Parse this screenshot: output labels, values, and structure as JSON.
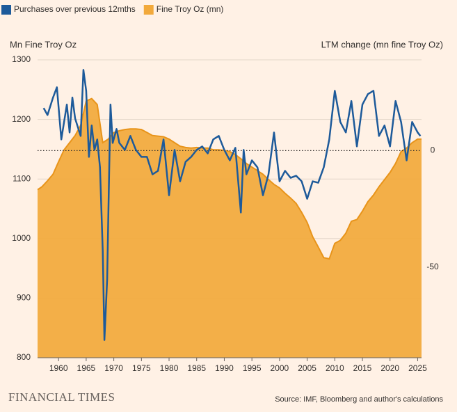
{
  "chart_data": {
    "type": "area",
    "y_label": "Mn Fine Troy Oz",
    "y2_label": "LTM change (mn fine Troy Oz)",
    "source": "Source: IMF, Bloomberg and author's calculations",
    "logo": "FINANCIAL TIMES",
    "xlim": [
      1956.2,
      2025.7
    ],
    "xticks": [
      1960,
      1965,
      1970,
      1975,
      1980,
      1985,
      1990,
      1995,
      2000,
      2005,
      2010,
      2015,
      2020,
      2025
    ],
    "ylim": [
      800,
      1300
    ],
    "yticks": [
      800,
      900,
      1000,
      1100,
      1200,
      1300
    ],
    "y2lim": [
      -89,
      39
    ],
    "y2ticks": [
      0,
      -50
    ],
    "hline": {
      "axis": "y2",
      "value": 0
    },
    "grid": true,
    "legend": "top-left",
    "series": [
      {
        "name": "Purchases over previous 12mths",
        "type": "line",
        "axis": "y2",
        "color": "#1d5a9a",
        "x": [
          1957.3,
          1958,
          1959,
          1959.7,
          1960.5,
          1961.5,
          1962,
          1962.5,
          1963,
          1964,
          1964.5,
          1965,
          1965.5,
          1966,
          1966.5,
          1967,
          1967.5,
          1968,
          1968.3,
          1968.8,
          1969.1,
          1969.4,
          1969.8,
          1970.5,
          1971,
          1972,
          1973,
          1974,
          1975,
          1976,
          1977,
          1978,
          1979,
          1980,
          1981,
          1982,
          1983,
          1984,
          1985,
          1986,
          1987,
          1988,
          1989,
          1990,
          1991,
          1992,
          1993,
          1993.5,
          1994,
          1995,
          1996,
          1997,
          1998,
          1999,
          2000,
          2001,
          2002,
          2003,
          2004,
          2005,
          2006,
          2007,
          2008,
          2009,
          2010,
          2011,
          2012,
          2013,
          2014,
          2015,
          2016,
          2017,
          2018,
          2019,
          2020,
          2021,
          2022,
          2023,
          2024,
          2025,
          2025.5
        ],
        "values": [
          18.3,
          15.3,
          22.8,
          27.2,
          4.8,
          19.8,
          7.8,
          22.8,
          13.8,
          6.3,
          34.7,
          25.7,
          -2.7,
          10.8,
          0.3,
          4.8,
          -7.2,
          -43.1,
          -81.4,
          -55.1,
          -16.2,
          19.8,
          3.3,
          9.3,
          3.3,
          0.3,
          6.3,
          0.3,
          -2.7,
          -2.7,
          -10.2,
          -8.7,
          4.8,
          -19.2,
          0.3,
          -13.2,
          -4.8,
          -2.7,
          0.3,
          1.8,
          -1.2,
          4.8,
          6.3,
          0.3,
          -4.2,
          1.2,
          -26.6,
          0.3,
          -10.2,
          -4.2,
          -7.2,
          -19.2,
          -10.2,
          7.8,
          -13.2,
          -8.7,
          -11.7,
          -10.8,
          -13.2,
          -20.7,
          -13.2,
          -13.8,
          -7.2,
          4.8,
          25.7,
          12.3,
          7.8,
          21.3,
          1.8,
          19.8,
          24.3,
          25.7,
          6.3,
          10.8,
          1.8,
          21.3,
          12.3,
          -4.2,
          12.3,
          7.8,
          6.3
        ]
      },
      {
        "name": "Fine Troy Oz (mn)",
        "type": "area",
        "color": "#f2a93b",
        "x": [
          1956.2,
          1957,
          1958,
          1959,
          1960,
          1961,
          1962,
          1963,
          1964,
          1965,
          1966,
          1967,
          1968,
          1969,
          1970,
          1971,
          1972,
          1973,
          1974,
          1975,
          1976,
          1977,
          1978,
          1979,
          1980,
          1981,
          1982,
          1983,
          1984,
          1985,
          1986,
          1987,
          1988,
          1989,
          1990,
          1991,
          1992,
          1993,
          1994,
          1995,
          1996,
          1997,
          1998,
          1999,
          2000,
          2001,
          2002,
          2003,
          2004,
          2005,
          2006,
          2007,
          2008,
          2009,
          2010,
          2011,
          2012,
          2013,
          2014,
          2015,
          2016,
          2017,
          2018,
          2019,
          2020,
          2021,
          2022,
          2023,
          2024,
          2025,
          2025.7
        ],
        "values": [
          1082,
          1087,
          1097,
          1108,
          1129,
          1149,
          1161,
          1173,
          1190,
          1231,
          1235,
          1225,
          1161,
          1167,
          1178,
          1181,
          1183,
          1184,
          1184,
          1183,
          1178,
          1173,
          1172,
          1171,
          1167,
          1161,
          1155,
          1153,
          1152,
          1153,
          1152,
          1152,
          1149,
          1149,
          1148,
          1146,
          1141,
          1134,
          1126,
          1120,
          1114,
          1108,
          1099,
          1091,
          1085,
          1076,
          1068,
          1059,
          1044,
          1027,
          1003,
          986,
          968,
          966,
          992,
          997,
          1009,
          1029,
          1032,
          1046,
          1062,
          1073,
          1087,
          1099,
          1111,
          1126,
          1146,
          1152,
          1161,
          1167,
          1167
        ]
      }
    ]
  }
}
